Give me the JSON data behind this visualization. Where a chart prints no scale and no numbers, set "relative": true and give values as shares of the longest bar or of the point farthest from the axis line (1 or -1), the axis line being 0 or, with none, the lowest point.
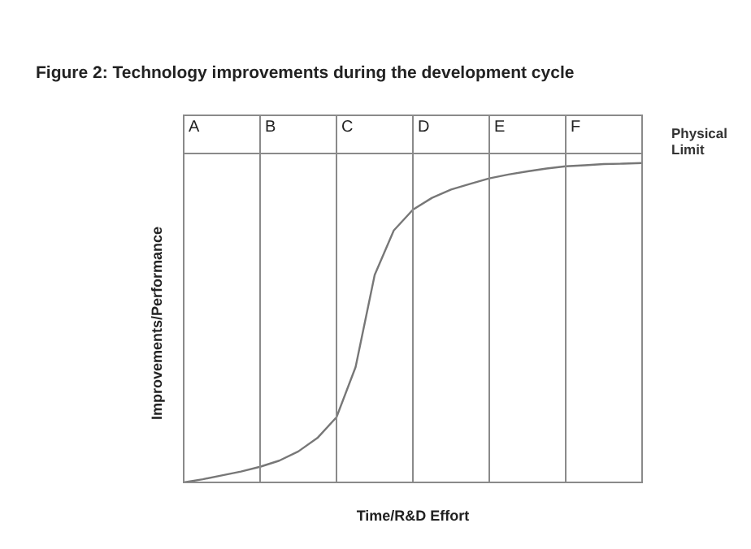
{
  "chart_data": {
    "type": "line",
    "title": "Figure 2: Technology improvements during the development cycle",
    "xlabel": "Time/R&D Effort",
    "ylabel": "Improvements/Performance",
    "relative": true,
    "grid": "x",
    "annotations": [
      "A",
      "B",
      "C",
      "D",
      "E",
      "F"
    ],
    "ref_lines": [
      {
        "axis": "y",
        "value": 1.03,
        "label": "Physical Limit"
      }
    ],
    "categories": [
      null,
      null,
      null,
      null,
      null,
      null,
      null,
      null,
      null,
      null,
      null,
      null,
      null,
      null,
      null,
      null,
      null,
      null,
      null,
      null,
      null,
      null,
      null,
      null,
      null
    ],
    "series": [
      {
        "color": "#777777",
        "values": [
          0,
          0.01,
          0.022,
          0.034,
          0.049,
          0.068,
          0.097,
          0.139,
          0.204,
          0.361,
          0.65,
          0.789,
          0.854,
          0.891,
          0.917,
          0.935,
          0.952,
          0.964,
          0.974,
          0.983,
          0.99,
          0.993,
          0.997,
          0.998,
          1
        ]
      }
    ]
  }
}
